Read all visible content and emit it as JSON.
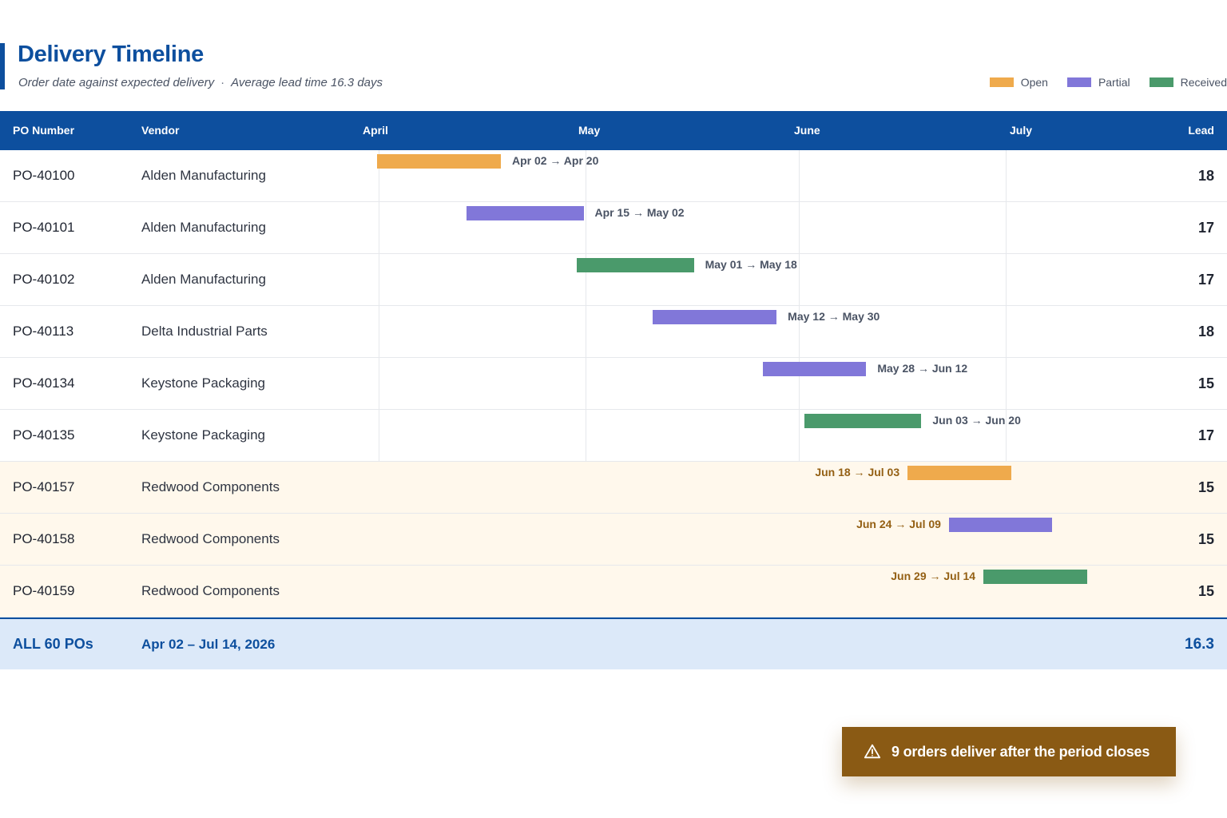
{
  "header": {
    "title": "Delivery Timeline",
    "subtitle": "Order date against expected delivery",
    "subtitle_extra": "Average lead time 16.3 days",
    "separator": "·"
  },
  "legend": [
    {
      "label": "Open",
      "color": "#efaa4c"
    },
    {
      "label": "Partial",
      "color": "#8177d9"
    },
    {
      "label": "Received",
      "color": "#4a9a6b"
    }
  ],
  "columns": {
    "po": "PO Number",
    "vendor": "Vendor",
    "lead": "Lead"
  },
  "months": [
    "April",
    "May",
    "June",
    "July"
  ],
  "rows": [
    {
      "po": "PO-40100",
      "vendor": "Alden Manufacturing",
      "lead": "18",
      "range": "Apr 02 → Apr 20",
      "start": "2026-04-02",
      "end": "2026-04-20",
      "status": "Open",
      "flagged": false
    },
    {
      "po": "PO-40101",
      "vendor": "Alden Manufacturing",
      "lead": "17",
      "range": "Apr 15 → May 02",
      "start": "2026-04-15",
      "end": "2026-05-02",
      "status": "Partial",
      "flagged": false
    },
    {
      "po": "PO-40102",
      "vendor": "Alden Manufacturing",
      "lead": "17",
      "range": "May 01 → May 18",
      "start": "2026-05-01",
      "end": "2026-05-18",
      "status": "Received",
      "flagged": false
    },
    {
      "po": "PO-40113",
      "vendor": "Delta Industrial Parts",
      "lead": "18",
      "range": "May 12 → May 30",
      "start": "2026-05-12",
      "end": "2026-05-30",
      "status": "Partial",
      "flagged": false
    },
    {
      "po": "PO-40134",
      "vendor": "Keystone Packaging",
      "lead": "15",
      "range": "May 28 → Jun 12",
      "start": "2026-05-28",
      "end": "2026-06-12",
      "status": "Partial",
      "flagged": false
    },
    {
      "po": "PO-40135",
      "vendor": "Keystone Packaging",
      "lead": "17",
      "range": "Jun 03 → Jun 20",
      "start": "2026-06-03",
      "end": "2026-06-20",
      "status": "Received",
      "flagged": false
    },
    {
      "po": "PO-40157",
      "vendor": "Redwood Components",
      "lead": "15",
      "range": "Jun 18 → Jul 03",
      "start": "2026-06-18",
      "end": "2026-07-03",
      "status": "Open",
      "flagged": true
    },
    {
      "po": "PO-40158",
      "vendor": "Redwood Components",
      "lead": "15",
      "range": "Jun 24 → Jul 09",
      "start": "2026-06-24",
      "end": "2026-07-09",
      "status": "Partial",
      "flagged": true
    },
    {
      "po": "PO-40159",
      "vendor": "Redwood Components",
      "lead": "15",
      "range": "Jun 29 → Jul 14",
      "start": "2026-06-29",
      "end": "2026-07-14",
      "status": "Received",
      "flagged": true
    }
  ],
  "total": {
    "label": "ALL 60 POs",
    "range": "Apr 02 – Jul 14, 2026",
    "lead": "16.3"
  },
  "toast": {
    "icon": "warning-icon",
    "text": "9 orders deliver after the period closes"
  }
}
